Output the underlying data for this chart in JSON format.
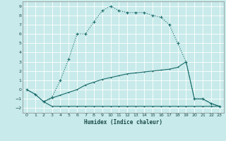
{
  "xlabel": "Humidex (Indice chaleur)",
  "bg_color": "#c8eaea",
  "grid_color": "#ffffff",
  "line_color": "#1a6b6b",
  "ylim": [
    -2.5,
    9.5
  ],
  "xlim": [
    -0.5,
    23.5
  ],
  "yticks": [
    -2,
    -1,
    0,
    1,
    2,
    3,
    4,
    5,
    6,
    7,
    8,
    9
  ],
  "xticks": [
    0,
    1,
    2,
    3,
    4,
    5,
    6,
    7,
    8,
    9,
    10,
    11,
    12,
    13,
    14,
    15,
    16,
    17,
    18,
    19,
    20,
    21,
    22,
    23
  ],
  "curve1_x": [
    0,
    1,
    2,
    3,
    4,
    5,
    6,
    7,
    8,
    9,
    10,
    11,
    12,
    13,
    14,
    15,
    16,
    17,
    18,
    19,
    20,
    21,
    22,
    23
  ],
  "curve1_y": [
    0.0,
    -0.5,
    -1.3,
    -0.8,
    1.0,
    3.3,
    6.0,
    6.0,
    7.3,
    8.5,
    9.0,
    8.5,
    8.3,
    8.3,
    8.3,
    8.0,
    7.8,
    7.0,
    5.0,
    3.0,
    -1.0,
    -1.0,
    -1.5,
    -1.8
  ],
  "curve2_x": [
    2,
    3,
    4,
    5,
    6,
    7,
    8,
    9,
    10,
    11,
    12,
    13,
    14,
    15,
    16,
    17,
    18,
    19,
    20,
    21,
    22,
    23
  ],
  "curve2_y": [
    -1.3,
    -1.8,
    -1.8,
    -1.8,
    -1.8,
    -1.8,
    -1.8,
    -1.8,
    -1.8,
    -1.8,
    -1.8,
    -1.8,
    -1.8,
    -1.8,
    -1.8,
    -1.8,
    -1.8,
    -1.8,
    -1.8,
    -1.8,
    -1.8,
    -1.8
  ],
  "curve3_x": [
    0,
    1,
    2,
    3,
    4,
    5,
    6,
    7,
    8,
    9,
    10,
    11,
    12,
    13,
    14,
    15,
    16,
    17,
    18,
    19,
    20,
    21,
    22,
    23
  ],
  "curve3_y": [
    0.0,
    -0.5,
    -1.3,
    -0.9,
    -0.6,
    -0.3,
    0.0,
    0.5,
    0.8,
    1.1,
    1.3,
    1.5,
    1.7,
    1.8,
    1.9,
    2.0,
    2.1,
    2.2,
    2.4,
    3.0,
    -1.0,
    -1.0,
    -1.5,
    -1.8
  ]
}
